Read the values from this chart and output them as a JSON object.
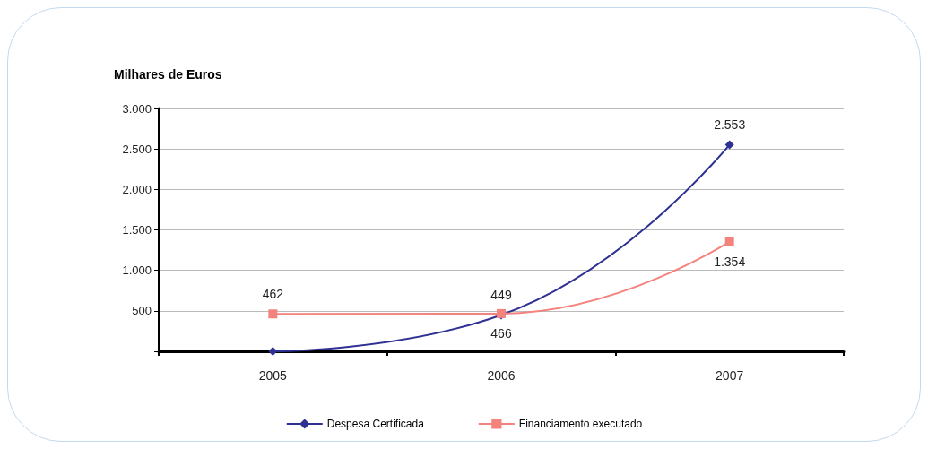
{
  "chart_data": {
    "type": "line",
    "ylabel": "Milhares de Euros",
    "categories": [
      "2005",
      "2006",
      "2007"
    ],
    "series": [
      {
        "name": "Despesa Certificada",
        "color": "#2e3192",
        "marker": "diamond",
        "values": [
          0,
          449,
          2553
        ],
        "value_labels": [
          null,
          "449",
          "2.553"
        ]
      },
      {
        "name": "Financiamento executado",
        "color": "#f4827d",
        "marker": "square",
        "values": [
          462,
          466,
          1354
        ],
        "value_labels": [
          "462",
          "466",
          "1.354"
        ]
      }
    ],
    "ylim": [
      0,
      3000
    ],
    "yticks": [
      {
        "value": 0,
        "label": null
      },
      {
        "value": 500,
        "label": "500"
      },
      {
        "value": 1000,
        "label": "1.000"
      },
      {
        "value": 1500,
        "label": "1.500"
      },
      {
        "value": 2000,
        "label": "2.000"
      },
      {
        "value": 2500,
        "label": "2.500"
      },
      {
        "value": 3000,
        "label": "3.000"
      }
    ],
    "grid": "y",
    "legend": "bottom"
  }
}
